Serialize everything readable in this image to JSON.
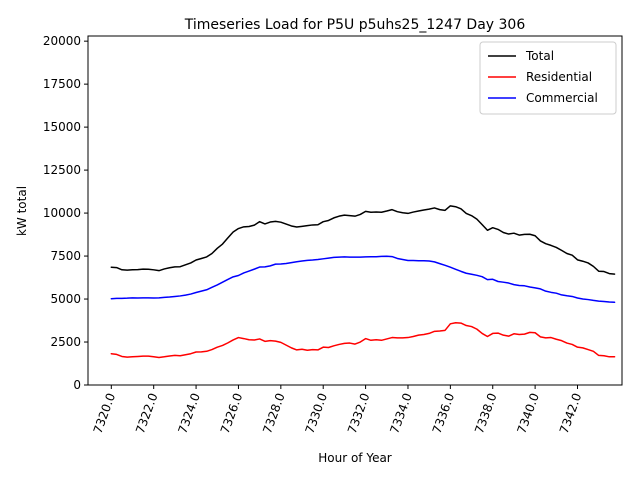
{
  "chart_data": {
    "type": "line",
    "title": "Timeseries Load for P5U p5uhs25_1247  Day 306",
    "xlabel": "Hour of Year",
    "ylabel": "kW total",
    "xlim": [
      7318.9,
      7344.1
    ],
    "ylim": [
      0,
      20300
    ],
    "x_ticks": [
      7320,
      7322,
      7324,
      7326,
      7328,
      7330,
      7332,
      7334,
      7336,
      7338,
      7340,
      7342
    ],
    "x_tick_labels": [
      "7320.0",
      "7322.0",
      "7324.0",
      "7326.0",
      "7328.0",
      "7330.0",
      "7332.0",
      "7334.0",
      "7336.0",
      "7338.0",
      "7340.0",
      "7342.0"
    ],
    "y_ticks": [
      0,
      2500,
      5000,
      7500,
      10000,
      12500,
      15000,
      17500,
      20000
    ],
    "y_tick_labels": [
      "0",
      "2500",
      "5000",
      "7500",
      "10000",
      "12500",
      "15000",
      "17500",
      "20000"
    ],
    "legend_position": "top-right",
    "series": [
      {
        "name": "Total",
        "color": "#000000",
        "points": [
          [
            7320.0,
            6850
          ],
          [
            7320.25,
            6830
          ],
          [
            7320.5,
            6700
          ],
          [
            7320.75,
            6680
          ],
          [
            7321.0,
            6700
          ],
          [
            7321.25,
            6710
          ],
          [
            7321.5,
            6740
          ],
          [
            7321.75,
            6730
          ],
          [
            7322.0,
            6700
          ],
          [
            7322.25,
            6650
          ],
          [
            7322.5,
            6750
          ],
          [
            7322.75,
            6820
          ],
          [
            7323.0,
            6870
          ],
          [
            7323.25,
            6880
          ],
          [
            7323.5,
            6990
          ],
          [
            7323.75,
            7100
          ],
          [
            7324.0,
            7270
          ],
          [
            7324.25,
            7360
          ],
          [
            7324.5,
            7450
          ],
          [
            7324.75,
            7650
          ],
          [
            7325.0,
            7950
          ],
          [
            7325.25,
            8200
          ],
          [
            7325.5,
            8560
          ],
          [
            7325.75,
            8900
          ],
          [
            7326.0,
            9100
          ],
          [
            7326.25,
            9200
          ],
          [
            7326.5,
            9220
          ],
          [
            7326.75,
            9300
          ],
          [
            7327.0,
            9500
          ],
          [
            7327.25,
            9370
          ],
          [
            7327.5,
            9480
          ],
          [
            7327.75,
            9520
          ],
          [
            7328.0,
            9470
          ],
          [
            7328.25,
            9360
          ],
          [
            7328.5,
            9250
          ],
          [
            7328.75,
            9190
          ],
          [
            7329.0,
            9230
          ],
          [
            7329.25,
            9270
          ],
          [
            7329.5,
            9310
          ],
          [
            7329.75,
            9320
          ],
          [
            7330.0,
            9500
          ],
          [
            7330.25,
            9570
          ],
          [
            7330.5,
            9720
          ],
          [
            7330.75,
            9820
          ],
          [
            7331.0,
            9880
          ],
          [
            7331.25,
            9850
          ],
          [
            7331.5,
            9820
          ],
          [
            7331.75,
            9920
          ],
          [
            7332.0,
            10100
          ],
          [
            7332.25,
            10050
          ],
          [
            7332.5,
            10060
          ],
          [
            7332.75,
            10050
          ],
          [
            7333.0,
            10120
          ],
          [
            7333.25,
            10200
          ],
          [
            7333.5,
            10080
          ],
          [
            7333.75,
            10020
          ],
          [
            7334.0,
            9980
          ],
          [
            7334.25,
            10060
          ],
          [
            7334.5,
            10120
          ],
          [
            7334.75,
            10180
          ],
          [
            7335.0,
            10230
          ],
          [
            7335.25,
            10300
          ],
          [
            7335.5,
            10200
          ],
          [
            7335.75,
            10160
          ],
          [
            7336.0,
            10420
          ],
          [
            7336.25,
            10370
          ],
          [
            7336.5,
            10250
          ],
          [
            7336.75,
            9980
          ],
          [
            7337.0,
            9850
          ],
          [
            7337.25,
            9650
          ],
          [
            7337.5,
            9330
          ],
          [
            7337.75,
            9000
          ],
          [
            7338.0,
            9150
          ],
          [
            7338.25,
            9050
          ],
          [
            7338.5,
            8870
          ],
          [
            7338.75,
            8780
          ],
          [
            7339.0,
            8830
          ],
          [
            7339.25,
            8720
          ],
          [
            7339.5,
            8760
          ],
          [
            7339.75,
            8770
          ],
          [
            7340.0,
            8680
          ],
          [
            7340.25,
            8380
          ],
          [
            7340.5,
            8220
          ],
          [
            7340.75,
            8120
          ],
          [
            7341.0,
            8000
          ],
          [
            7341.25,
            7830
          ],
          [
            7341.5,
            7650
          ],
          [
            7341.75,
            7550
          ],
          [
            7342.0,
            7280
          ],
          [
            7342.25,
            7200
          ],
          [
            7342.5,
            7100
          ],
          [
            7342.75,
            6900
          ],
          [
            7343.0,
            6620
          ],
          [
            7343.25,
            6600
          ],
          [
            7343.5,
            6480
          ],
          [
            7343.75,
            6450
          ]
        ]
      },
      {
        "name": "Residential",
        "color": "#ff0000",
        "points": [
          [
            7320.0,
            1820
          ],
          [
            7320.25,
            1780
          ],
          [
            7320.5,
            1660
          ],
          [
            7320.75,
            1620
          ],
          [
            7321.0,
            1640
          ],
          [
            7321.25,
            1660
          ],
          [
            7321.5,
            1680
          ],
          [
            7321.75,
            1680
          ],
          [
            7322.0,
            1640
          ],
          [
            7322.25,
            1600
          ],
          [
            7322.5,
            1640
          ],
          [
            7322.75,
            1690
          ],
          [
            7323.0,
            1720
          ],
          [
            7323.25,
            1700
          ],
          [
            7323.5,
            1760
          ],
          [
            7323.75,
            1820
          ],
          [
            7324.0,
            1920
          ],
          [
            7324.25,
            1930
          ],
          [
            7324.5,
            1960
          ],
          [
            7324.75,
            2060
          ],
          [
            7325.0,
            2200
          ],
          [
            7325.25,
            2300
          ],
          [
            7325.5,
            2450
          ],
          [
            7325.75,
            2620
          ],
          [
            7326.0,
            2760
          ],
          [
            7326.25,
            2700
          ],
          [
            7326.5,
            2630
          ],
          [
            7326.75,
            2620
          ],
          [
            7327.0,
            2680
          ],
          [
            7327.25,
            2540
          ],
          [
            7327.5,
            2580
          ],
          [
            7327.75,
            2550
          ],
          [
            7328.0,
            2480
          ],
          [
            7328.25,
            2320
          ],
          [
            7328.5,
            2160
          ],
          [
            7328.75,
            2040
          ],
          [
            7329.0,
            2080
          ],
          [
            7329.25,
            2020
          ],
          [
            7329.5,
            2060
          ],
          [
            7329.75,
            2040
          ],
          [
            7330.0,
            2200
          ],
          [
            7330.25,
            2180
          ],
          [
            7330.5,
            2280
          ],
          [
            7330.75,
            2360
          ],
          [
            7331.0,
            2420
          ],
          [
            7331.25,
            2440
          ],
          [
            7331.5,
            2380
          ],
          [
            7331.75,
            2500
          ],
          [
            7332.0,
            2700
          ],
          [
            7332.25,
            2600
          ],
          [
            7332.5,
            2630
          ],
          [
            7332.75,
            2600
          ],
          [
            7333.0,
            2680
          ],
          [
            7333.25,
            2760
          ],
          [
            7333.5,
            2740
          ],
          [
            7333.75,
            2740
          ],
          [
            7334.0,
            2760
          ],
          [
            7334.25,
            2820
          ],
          [
            7334.5,
            2900
          ],
          [
            7334.75,
            2940
          ],
          [
            7335.0,
            3000
          ],
          [
            7335.25,
            3120
          ],
          [
            7335.5,
            3140
          ],
          [
            7335.75,
            3180
          ],
          [
            7336.0,
            3560
          ],
          [
            7336.25,
            3620
          ],
          [
            7336.5,
            3600
          ],
          [
            7336.75,
            3460
          ],
          [
            7337.0,
            3400
          ],
          [
            7337.25,
            3250
          ],
          [
            7337.5,
            3000
          ],
          [
            7337.75,
            2820
          ],
          [
            7338.0,
            3000
          ],
          [
            7338.25,
            3020
          ],
          [
            7338.5,
            2900
          ],
          [
            7338.75,
            2840
          ],
          [
            7339.0,
            2980
          ],
          [
            7339.25,
            2940
          ],
          [
            7339.5,
            2960
          ],
          [
            7339.75,
            3060
          ],
          [
            7340.0,
            3040
          ],
          [
            7340.25,
            2800
          ],
          [
            7340.5,
            2740
          ],
          [
            7340.75,
            2760
          ],
          [
            7341.0,
            2660
          ],
          [
            7341.25,
            2580
          ],
          [
            7341.5,
            2440
          ],
          [
            7341.75,
            2360
          ],
          [
            7342.0,
            2200
          ],
          [
            7342.25,
            2160
          ],
          [
            7342.5,
            2060
          ],
          [
            7342.75,
            1960
          ],
          [
            7343.0,
            1720
          ],
          [
            7343.25,
            1700
          ],
          [
            7343.5,
            1640
          ],
          [
            7343.75,
            1640
          ]
        ]
      },
      {
        "name": "Commercial",
        "color": "#0000ff",
        "points": [
          [
            7320.0,
            5020
          ],
          [
            7320.25,
            5040
          ],
          [
            7320.5,
            5040
          ],
          [
            7320.75,
            5050
          ],
          [
            7321.0,
            5070
          ],
          [
            7321.25,
            5060
          ],
          [
            7321.5,
            5070
          ],
          [
            7321.75,
            5070
          ],
          [
            7322.0,
            5060
          ],
          [
            7322.25,
            5070
          ],
          [
            7322.5,
            5100
          ],
          [
            7322.75,
            5120
          ],
          [
            7323.0,
            5150
          ],
          [
            7323.25,
            5180
          ],
          [
            7323.5,
            5230
          ],
          [
            7323.75,
            5290
          ],
          [
            7324.0,
            5380
          ],
          [
            7324.25,
            5460
          ],
          [
            7324.5,
            5540
          ],
          [
            7324.75,
            5680
          ],
          [
            7325.0,
            5820
          ],
          [
            7325.25,
            5980
          ],
          [
            7325.5,
            6140
          ],
          [
            7325.75,
            6290
          ],
          [
            7326.0,
            6370
          ],
          [
            7326.25,
            6520
          ],
          [
            7326.5,
            6630
          ],
          [
            7326.75,
            6740
          ],
          [
            7327.0,
            6860
          ],
          [
            7327.25,
            6870
          ],
          [
            7327.5,
            6930
          ],
          [
            7327.75,
            7030
          ],
          [
            7328.0,
            7040
          ],
          [
            7328.25,
            7070
          ],
          [
            7328.5,
            7120
          ],
          [
            7328.75,
            7170
          ],
          [
            7329.0,
            7210
          ],
          [
            7329.25,
            7250
          ],
          [
            7329.5,
            7270
          ],
          [
            7329.75,
            7300
          ],
          [
            7330.0,
            7340
          ],
          [
            7330.25,
            7380
          ],
          [
            7330.5,
            7420
          ],
          [
            7330.75,
            7440
          ],
          [
            7331.0,
            7450
          ],
          [
            7331.25,
            7440
          ],
          [
            7331.5,
            7440
          ],
          [
            7331.75,
            7440
          ],
          [
            7332.0,
            7450
          ],
          [
            7332.25,
            7460
          ],
          [
            7332.5,
            7460
          ],
          [
            7332.75,
            7480
          ],
          [
            7333.0,
            7490
          ],
          [
            7333.25,
            7470
          ],
          [
            7333.5,
            7360
          ],
          [
            7333.75,
            7300
          ],
          [
            7334.0,
            7240
          ],
          [
            7334.25,
            7240
          ],
          [
            7334.5,
            7230
          ],
          [
            7334.75,
            7230
          ],
          [
            7335.0,
            7210
          ],
          [
            7335.25,
            7160
          ],
          [
            7335.5,
            7060
          ],
          [
            7335.75,
            6960
          ],
          [
            7336.0,
            6850
          ],
          [
            7336.25,
            6730
          ],
          [
            7336.5,
            6610
          ],
          [
            7336.75,
            6500
          ],
          [
            7337.0,
            6440
          ],
          [
            7337.25,
            6380
          ],
          [
            7337.5,
            6300
          ],
          [
            7337.75,
            6130
          ],
          [
            7338.0,
            6150
          ],
          [
            7338.25,
            6020
          ],
          [
            7338.5,
            5980
          ],
          [
            7338.75,
            5930
          ],
          [
            7339.0,
            5840
          ],
          [
            7339.25,
            5790
          ],
          [
            7339.5,
            5770
          ],
          [
            7339.75,
            5700
          ],
          [
            7340.0,
            5650
          ],
          [
            7340.25,
            5590
          ],
          [
            7340.5,
            5460
          ],
          [
            7340.75,
            5390
          ],
          [
            7341.0,
            5340
          ],
          [
            7341.25,
            5240
          ],
          [
            7341.5,
            5190
          ],
          [
            7341.75,
            5150
          ],
          [
            7342.0,
            5060
          ],
          [
            7342.25,
            5000
          ],
          [
            7342.5,
            4970
          ],
          [
            7342.75,
            4920
          ],
          [
            7343.0,
            4880
          ],
          [
            7343.25,
            4860
          ],
          [
            7343.5,
            4830
          ],
          [
            7343.75,
            4810
          ]
        ]
      }
    ]
  }
}
